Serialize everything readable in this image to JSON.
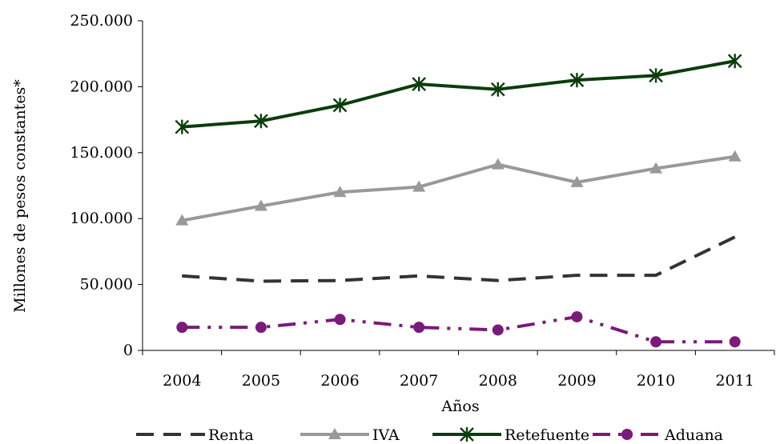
{
  "chart_data": {
    "type": "line",
    "title": "",
    "xlabel": "Años",
    "ylabel": "Millones de pesos constantes*",
    "categories": [
      "2004",
      "2005",
      "2006",
      "2007",
      "2008",
      "2009",
      "2010",
      "2011"
    ],
    "y_ticks": [
      "0",
      "50.000",
      "100.000",
      "150.000",
      "200.000",
      "250.000"
    ],
    "ylim": [
      0,
      250000
    ],
    "grid": false,
    "legend_position": "bottom",
    "series": [
      {
        "name": "Renta",
        "values": [
          56500,
          52500,
          53000,
          56500,
          53000,
          57000,
          57000,
          86000
        ],
        "color": "#333333",
        "dash": "long-dash",
        "marker": "none"
      },
      {
        "name": "IVA",
        "values": [
          98500,
          109500,
          120000,
          124000,
          141000,
          127500,
          138000,
          147000
        ],
        "color": "#999999",
        "dash": "solid",
        "marker": "triangle"
      },
      {
        "name": "Retefuente",
        "values": [
          169500,
          174000,
          186000,
          202000,
          198000,
          205000,
          208500,
          219500
        ],
        "color": "#0b3d0b",
        "dash": "solid",
        "marker": "asterisk"
      },
      {
        "name": "Aduana",
        "values": [
          17500,
          17500,
          23500,
          17500,
          15500,
          25500,
          6500,
          6500
        ],
        "color": "#7a1a7a",
        "dash": "long-dash-dot-dot",
        "marker": "circle"
      }
    ]
  }
}
